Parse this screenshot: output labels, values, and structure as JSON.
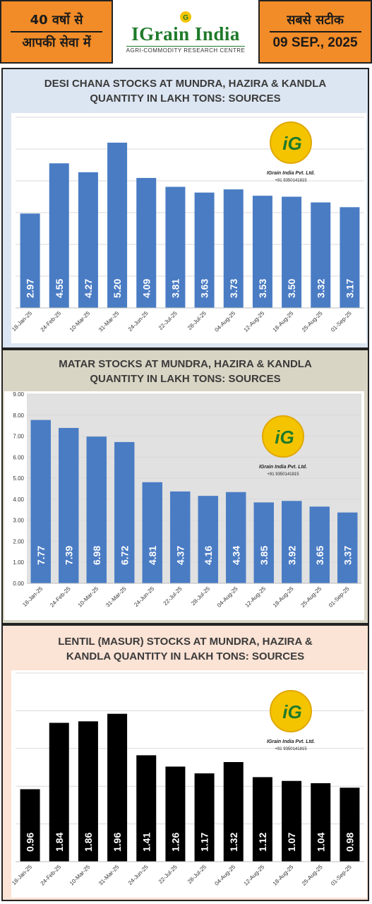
{
  "header": {
    "left_line1": "40 वर्षो से",
    "left_line2": "आपकी सेवा में",
    "brand": "IGrain India",
    "brand_sub": "AGRI-COMMODITY RESEARCH CENTRE",
    "right_line1": "सबसे सटीक",
    "date": "09 SEP., 2025"
  },
  "watermark": {
    "company": "IGrain India Pvt. Ltd.",
    "phone": "+91 9350141815"
  },
  "colors": {
    "orange": "#f28c28",
    "panel1_bg": "#dce6f2",
    "panel2_bg": "#d9d5c4",
    "panel3_bg": "#fbe3d5",
    "blue_bar": "#4a7cc4",
    "black_bar": "#000000"
  },
  "chart_data": [
    {
      "type": "bar",
      "title_line1": "DESI CHANA STOCKS  AT MUNDRA, HAZIRA & KANDLA",
      "title_line2": "QUANTITY IN LAKH TONS: SOURCES",
      "categories": [
        "18-Jan-25",
        "24-Feb-25",
        "10-Mar-25",
        "31-Mar-25",
        "24-Jun-25",
        "22-Jul-25",
        "28-Jul-25",
        "04-Aug-25",
        "12-Aug-25",
        "18-Aug-25",
        "25-Aug-25",
        "01-Sep-25"
      ],
      "values": [
        2.97,
        4.55,
        4.27,
        5.2,
        4.09,
        3.81,
        3.63,
        3.73,
        3.53,
        3.5,
        3.32,
        3.17
      ],
      "labels": [
        "2.97",
        "4.55",
        "4.27",
        "5.20",
        "4.09",
        "3.81",
        "3.63",
        "3.73",
        "3.53",
        "3.50",
        "3.32",
        "3.17"
      ],
      "ylim": [
        0,
        6
      ],
      "grid": true,
      "bar_color": "#4a7cc4"
    },
    {
      "type": "bar",
      "title_line1": "MATAR STOCKS  AT MUNDRA, HAZIRA & KANDLA",
      "title_line2": "QUANTITY IN LAKH TONS: SOURCES",
      "categories": [
        "18-Jan-25",
        "24-Feb-25",
        "10-Mar-25",
        "31-Mar-25",
        "24-Jun-25",
        "22-Jul-25",
        "28-Jul-25",
        "04-Aug-25",
        "12-Aug-25",
        "18-Aug-25",
        "25-Aug-25",
        "01-Sep-25"
      ],
      "values": [
        7.77,
        7.39,
        6.98,
        6.72,
        4.81,
        4.37,
        4.16,
        4.34,
        3.85,
        3.92,
        3.65,
        3.37
      ],
      "labels": [
        "7.77",
        "7.39",
        "6.98",
        "6.72",
        "4.81",
        "4.37",
        "4.16",
        "4.34",
        "3.85",
        "3.92",
        "3.65",
        "3.37"
      ],
      "ylim": [
        0,
        9
      ],
      "yticks": [
        "0.00",
        "1.00",
        "2.00",
        "3.00",
        "4.00",
        "5.00",
        "6.00",
        "7.00",
        "8.00",
        "9.00"
      ],
      "grid": true,
      "bar_color": "#4a7cc4"
    },
    {
      "type": "bar",
      "title_line1": "LENTIL (MASUR) STOCKS  AT MUNDRA, HAZIRA &",
      "title_line2": "KANDLA QUANTITY IN LAKH TONS: SOURCES",
      "categories": [
        "18-Jan-25",
        "24-Feb-25",
        "10-Mar-25",
        "31-Mar-25",
        "24-Jun-25",
        "22-Jul-25",
        "28-Jul-25",
        "04-Aug-25",
        "12-Aug-25",
        "18-Aug-25",
        "25-Aug-25",
        "01-Sep-25"
      ],
      "values": [
        0.96,
        1.84,
        1.86,
        1.96,
        1.41,
        1.26,
        1.17,
        1.32,
        1.12,
        1.07,
        1.04,
        0.98
      ],
      "labels": [
        "0.96",
        "1.84",
        "1.86",
        "1.96",
        "1.41",
        "1.26",
        "1.17",
        "1.32",
        "1.12",
        "1.07",
        "1.04",
        "0.98"
      ],
      "ylim": [
        0,
        2.5
      ],
      "grid": true,
      "bar_color": "#000000"
    }
  ]
}
